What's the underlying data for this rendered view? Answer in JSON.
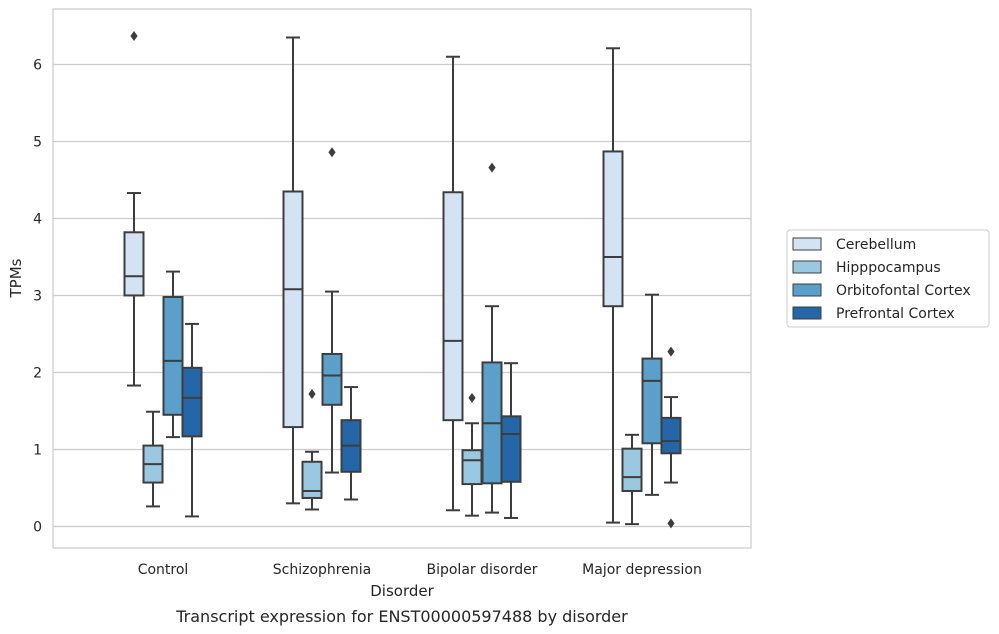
{
  "caption": "Transcript expression for ENST00000597488 by disorder",
  "colors": {
    "Cerebellum": "#d3e3f3",
    "Hipppocampus": "#9ac8e0",
    "Orbitofontal Cortex": "#5b9fcb",
    "Prefrontal Cortex": "#2466a8",
    "line": "#3d3d3d",
    "grid": "#cccccc"
  },
  "chart_data": {
    "type": "boxplot",
    "xlabel": "Disorder",
    "ylabel": "TPMs",
    "ylim": [
      -0.28,
      6.72
    ],
    "yticks": [
      0,
      1,
      2,
      3,
      4,
      5,
      6
    ],
    "grid": "horizontal",
    "legend_position": "right",
    "categories": [
      "Control",
      "Schizophrenia",
      "Bipolar disorder",
      "Major depression"
    ],
    "series": [
      {
        "name": "Cerebellum",
        "boxes": [
          {
            "whislo": 1.83,
            "q1": 3.0,
            "med": 3.25,
            "q3": 3.82,
            "whishi": 4.33,
            "fliers": [
              6.37
            ]
          },
          {
            "whislo": 0.3,
            "q1": 1.29,
            "med": 3.08,
            "q3": 4.35,
            "whishi": 6.35,
            "fliers": []
          },
          {
            "whislo": 0.21,
            "q1": 1.38,
            "med": 2.41,
            "q3": 4.34,
            "whishi": 6.1,
            "fliers": []
          },
          {
            "whislo": 0.05,
            "q1": 2.86,
            "med": 3.5,
            "q3": 4.87,
            "whishi": 6.21,
            "fliers": []
          }
        ]
      },
      {
        "name": "Hipppocampus",
        "boxes": [
          {
            "whislo": 0.26,
            "q1": 0.57,
            "med": 0.81,
            "q3": 1.05,
            "whishi": 1.49,
            "fliers": []
          },
          {
            "whislo": 0.22,
            "q1": 0.37,
            "med": 0.46,
            "q3": 0.84,
            "whishi": 0.97,
            "fliers": [
              1.72
            ]
          },
          {
            "whislo": 0.14,
            "q1": 0.55,
            "med": 0.86,
            "q3": 0.99,
            "whishi": 1.34,
            "fliers": [
              1.67
            ]
          },
          {
            "whislo": 0.03,
            "q1": 0.46,
            "med": 0.64,
            "q3": 1.01,
            "whishi": 1.19,
            "fliers": []
          }
        ]
      },
      {
        "name": "Orbitofontal Cortex",
        "boxes": [
          {
            "whislo": 1.16,
            "q1": 1.45,
            "med": 2.15,
            "q3": 2.98,
            "whishi": 3.31,
            "fliers": []
          },
          {
            "whislo": 0.7,
            "q1": 1.58,
            "med": 1.96,
            "q3": 2.24,
            "whishi": 3.05,
            "fliers": [
              4.86
            ]
          },
          {
            "whislo": 0.18,
            "q1": 0.56,
            "med": 1.34,
            "q3": 2.13,
            "whishi": 2.86,
            "fliers": [
              4.66
            ]
          },
          {
            "whislo": 0.41,
            "q1": 1.08,
            "med": 1.89,
            "q3": 2.18,
            "whishi": 3.01,
            "fliers": []
          }
        ]
      },
      {
        "name": "Prefrontal Cortex",
        "boxes": [
          {
            "whislo": 0.13,
            "q1": 1.17,
            "med": 1.67,
            "q3": 2.06,
            "whishi": 2.63,
            "fliers": []
          },
          {
            "whislo": 0.35,
            "q1": 0.71,
            "med": 1.05,
            "q3": 1.38,
            "whishi": 1.81,
            "fliers": []
          },
          {
            "whislo": 0.11,
            "q1": 0.58,
            "med": 1.2,
            "q3": 1.43,
            "whishi": 2.12,
            "fliers": []
          },
          {
            "whislo": 0.57,
            "q1": 0.95,
            "med": 1.11,
            "q3": 1.41,
            "whishi": 1.68,
            "fliers": [
              2.27,
              0.04
            ]
          }
        ]
      }
    ]
  }
}
